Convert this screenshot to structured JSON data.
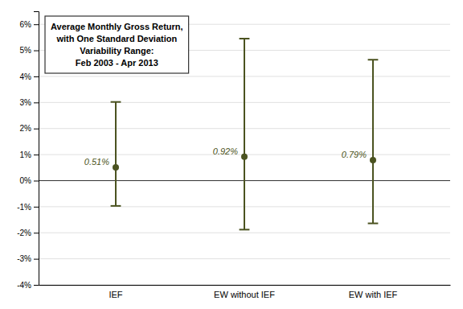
{
  "chart_data": {
    "type": "errorbar",
    "categories": [
      "IEF",
      "EW without IEF",
      "EW with IEF"
    ],
    "values": [
      0.0051,
      0.0092,
      0.0079
    ],
    "upper_errors": [
      0.0251,
      0.0453,
      0.0385
    ],
    "lower_errors": [
      0.0148,
      0.028,
      0.0243
    ],
    "value_labels": [
      "0.51%",
      "0.92%",
      "0.79%"
    ],
    "data_labels": true,
    "color": "#4b5320",
    "ylim": [
      -0.04,
      0.065
    ],
    "yticks": [
      {
        "value": -0.04,
        "label": "-4%"
      },
      {
        "value": -0.03,
        "label": "-3%"
      },
      {
        "value": -0.02,
        "label": "-2%"
      },
      {
        "value": -0.01,
        "label": "-1%"
      },
      {
        "value": 0.0,
        "label": "0%"
      },
      {
        "value": 0.01,
        "label": "1%"
      },
      {
        "value": 0.02,
        "label": "2%"
      },
      {
        "value": 0.03,
        "label": "3%"
      },
      {
        "value": 0.04,
        "label": "4%"
      },
      {
        "value": 0.05,
        "label": "5%"
      },
      {
        "value": 0.06,
        "label": "6%"
      }
    ],
    "grid": true,
    "annotation": "Average Monthly Gross Return,\nwith One Standard Deviation\nVariability Range:\nFeb 2003 - Apr 2013"
  }
}
